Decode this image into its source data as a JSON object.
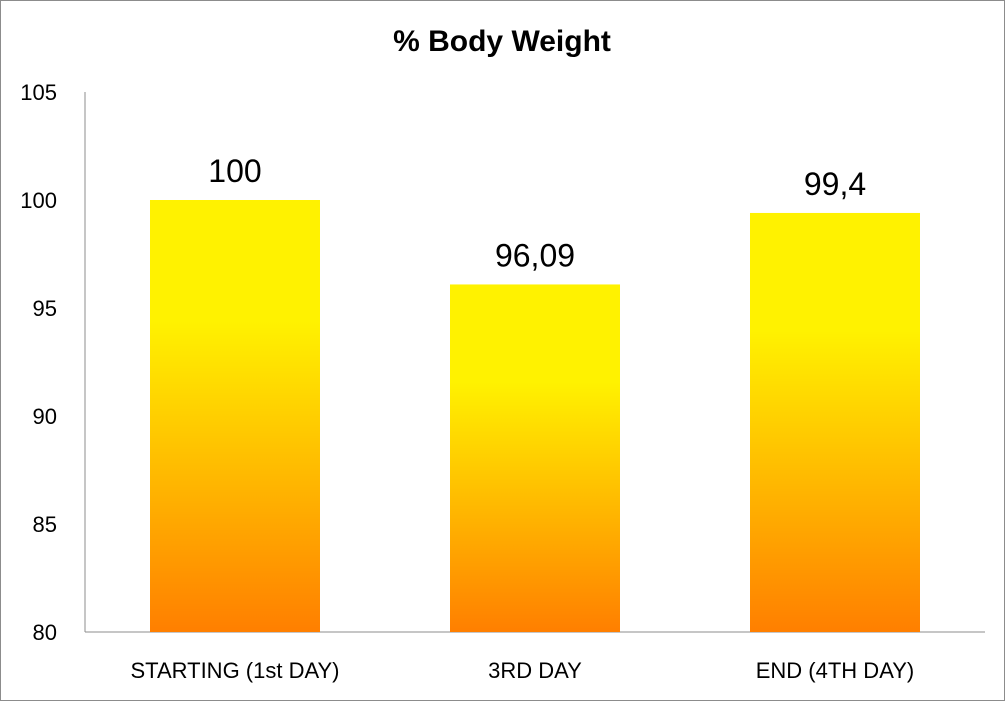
{
  "chart_data": {
    "type": "bar",
    "title": "% Body Weight",
    "xlabel": "",
    "ylabel": "",
    "categories": [
      "STARTING (1st DAY)",
      "3RD DAY",
      "END (4TH DAY)"
    ],
    "values": [
      100,
      96.09,
      99.4
    ],
    "data_labels": [
      "100",
      "96,09",
      "99,4"
    ],
    "ylim": [
      80,
      105
    ],
    "yticks": [
      80,
      85,
      90,
      95,
      100,
      105
    ],
    "grid": false,
    "legend": "none",
    "colors": {
      "bar_top": "#FFF200",
      "bar_bottom": "#FF7F00",
      "axis": "#8c8c8c"
    }
  }
}
